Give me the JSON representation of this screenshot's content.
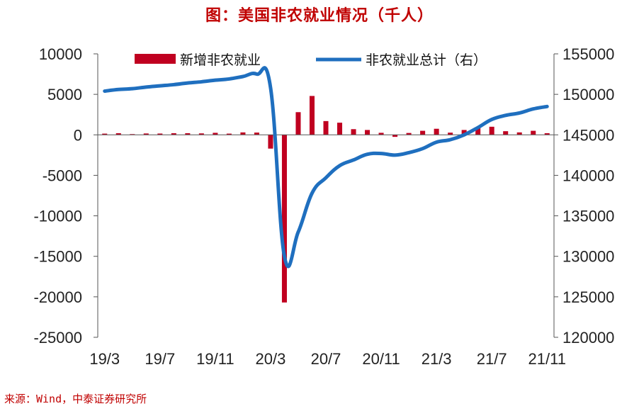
{
  "title": "图：美国非农就业情况（千人）",
  "source": "来源：Wind，中泰证券研究所",
  "colors": {
    "bar": "#c00020",
    "line": "#1f6fbf",
    "title": "#c00000"
  },
  "chart_data": {
    "type": "bar",
    "x": [
      "19/3",
      "19/4",
      "19/5",
      "19/6",
      "19/7",
      "19/8",
      "19/9",
      "19/10",
      "19/11",
      "19/12",
      "20/1",
      "20/2",
      "20/3",
      "20/4",
      "20/5",
      "20/6",
      "20/7",
      "20/8",
      "20/9",
      "20/10",
      "20/11",
      "20/12",
      "21/1",
      "21/2",
      "21/3",
      "21/4",
      "21/5",
      "21/6",
      "21/7",
      "21/8",
      "21/9",
      "21/10",
      "21/11"
    ],
    "xticks": [
      "19/3",
      "19/7",
      "19/11",
      "20/3",
      "20/7",
      "20/11",
      "21/3",
      "21/7",
      "21/11"
    ],
    "series": [
      {
        "name": "新增非农就业",
        "type": "bar",
        "axis": "left",
        "values": [
          150,
          200,
          90,
          170,
          160,
          200,
          200,
          180,
          250,
          150,
          300,
          280,
          -1700,
          -20700,
          2800,
          4800,
          1700,
          1500,
          700,
          600,
          250,
          -250,
          230,
          500,
          750,
          270,
          600,
          900,
          1000,
          450,
          300,
          500,
          200
        ]
      },
      {
        "name": "非农就业总计（右）",
        "type": "line",
        "axis": "right",
        "values": [
          150400,
          150600,
          150700,
          150900,
          151050,
          151200,
          151400,
          151550,
          151750,
          151900,
          152200,
          152500,
          150800,
          130000,
          133000,
          137800,
          139700,
          141200,
          141900,
          142600,
          142700,
          142500,
          142800,
          143300,
          144100,
          144400,
          145000,
          145900,
          146900,
          147400,
          147700,
          148200,
          148500
        ]
      }
    ],
    "ylim_left": [
      -25000,
      10000
    ],
    "yticks_left": [
      10000,
      5000,
      0,
      -5000,
      -10000,
      -15000,
      -20000,
      -25000
    ],
    "ylim_right": [
      120000,
      155000
    ],
    "yticks_right": [
      155000,
      150000,
      145000,
      140000,
      135000,
      130000,
      125000,
      120000
    ],
    "legend_position": "top"
  }
}
